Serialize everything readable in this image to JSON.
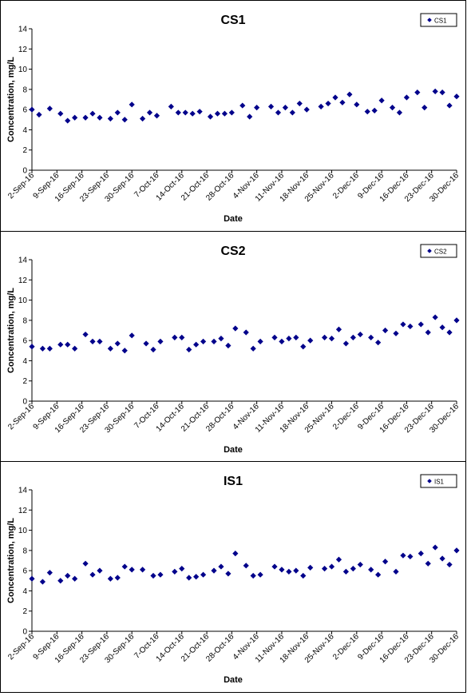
{
  "chart_data": [
    {
      "type": "scatter",
      "title": "CS1",
      "xlabel": "Date",
      "ylabel": "Concentration, mg/L",
      "legend": {
        "label": "CS1",
        "placement": "top-right"
      },
      "marker": "diamond",
      "color": "#00008B",
      "ylim": [
        0,
        14
      ],
      "yticks": [
        0,
        2,
        4,
        6,
        8,
        10,
        12,
        14
      ],
      "xlim": [
        "2016-09-02",
        "2016-12-30"
      ],
      "xtick_labels": [
        "2-Sep-16",
        "9-Sep-16",
        "16-Sep-16",
        "23-Sep-16",
        "30-Sep-16",
        "7-Oct-16",
        "14-Oct-16",
        "21-Oct-16",
        "28-Oct-16",
        "4-Nov-16",
        "11-Nov-16",
        "18-Nov-16",
        "25-Nov-16",
        "2-Dec-16",
        "9-Dec-16",
        "16-Dec-16",
        "23-Dec-16",
        "30-Dec-16"
      ],
      "grid": false,
      "x": [
        "2016-09-02",
        "2016-09-04",
        "2016-09-07",
        "2016-09-10",
        "2016-09-12",
        "2016-09-14",
        "2016-09-17",
        "2016-09-19",
        "2016-09-21",
        "2016-09-24",
        "2016-09-26",
        "2016-09-28",
        "2016-09-30",
        "2016-10-03",
        "2016-10-05",
        "2016-10-07",
        "2016-10-11",
        "2016-10-13",
        "2016-10-15",
        "2016-10-17",
        "2016-10-19",
        "2016-10-22",
        "2016-10-24",
        "2016-10-26",
        "2016-10-28",
        "2016-10-31",
        "2016-11-02",
        "2016-11-04",
        "2016-11-08",
        "2016-11-10",
        "2016-11-12",
        "2016-11-14",
        "2016-11-16",
        "2016-11-18",
        "2016-11-22",
        "2016-11-24",
        "2016-11-26",
        "2016-11-28",
        "2016-11-30",
        "2016-12-02",
        "2016-12-05",
        "2016-12-07",
        "2016-12-09",
        "2016-12-12",
        "2016-12-14",
        "2016-12-16",
        "2016-12-19",
        "2016-12-21",
        "2016-12-24",
        "2016-12-26",
        "2016-12-28",
        "2016-12-30"
      ],
      "values": [
        6.0,
        5.5,
        6.1,
        5.6,
        4.9,
        5.2,
        5.2,
        5.6,
        5.2,
        5.1,
        5.7,
        5.0,
        6.5,
        5.1,
        5.7,
        5.4,
        6.3,
        5.7,
        5.7,
        5.6,
        5.8,
        5.3,
        5.6,
        5.6,
        5.7,
        6.4,
        5.3,
        6.2,
        6.3,
        5.7,
        6.2,
        5.7,
        6.6,
        6.0,
        6.3,
        6.6,
        7.2,
        6.7,
        7.5,
        6.5,
        5.8,
        5.9,
        6.9,
        6.2,
        5.7,
        7.2,
        7.7,
        6.2,
        7.8,
        7.7,
        6.4,
        7.3
      ]
    },
    {
      "type": "scatter",
      "title": "CS2",
      "xlabel": "Date",
      "ylabel": "Concentration, mg/L",
      "legend": {
        "label": "CS2",
        "placement": "top-right"
      },
      "marker": "diamond",
      "color": "#00008B",
      "ylim": [
        0,
        14
      ],
      "yticks": [
        0,
        2,
        4,
        6,
        8,
        10,
        12,
        14
      ],
      "xlim": [
        "2016-09-02",
        "2016-12-30"
      ],
      "xtick_labels": [
        "2-Sep-16",
        "9-Sep-16",
        "16-Sep-16",
        "23-Sep-16",
        "30-Sep-16",
        "7-Oct-16",
        "14-Oct-16",
        "21-Oct-16",
        "28-Oct-16",
        "4-Nov-16",
        "11-Nov-16",
        "18-Nov-16",
        "25-Nov-16",
        "2-Dec-16",
        "9-Dec-16",
        "16-Dec-16",
        "23-Dec-16",
        "30-Dec-16"
      ],
      "grid": false,
      "x": [
        "2016-09-02",
        "2016-09-05",
        "2016-09-07",
        "2016-09-10",
        "2016-09-12",
        "2016-09-14",
        "2016-09-17",
        "2016-09-19",
        "2016-09-21",
        "2016-09-24",
        "2016-09-26",
        "2016-09-28",
        "2016-09-30",
        "2016-10-04",
        "2016-10-06",
        "2016-10-08",
        "2016-10-12",
        "2016-10-14",
        "2016-10-16",
        "2016-10-18",
        "2016-10-20",
        "2016-10-23",
        "2016-10-25",
        "2016-10-27",
        "2016-10-29",
        "2016-11-01",
        "2016-11-03",
        "2016-11-05",
        "2016-11-09",
        "2016-11-11",
        "2016-11-13",
        "2016-11-15",
        "2016-11-17",
        "2016-11-19",
        "2016-11-23",
        "2016-11-25",
        "2016-11-27",
        "2016-11-29",
        "2016-12-01",
        "2016-12-03",
        "2016-12-06",
        "2016-12-08",
        "2016-12-10",
        "2016-12-13",
        "2016-12-15",
        "2016-12-17",
        "2016-12-20",
        "2016-12-22",
        "2016-12-24",
        "2016-12-26",
        "2016-12-28",
        "2016-12-30"
      ],
      "values": [
        5.4,
        5.2,
        5.2,
        5.6,
        5.6,
        5.2,
        6.6,
        5.9,
        5.9,
        5.2,
        5.7,
        5.0,
        6.5,
        5.7,
        5.1,
        5.9,
        6.3,
        6.3,
        5.1,
        5.6,
        5.9,
        5.9,
        6.2,
        5.5,
        7.2,
        6.8,
        5.2,
        5.9,
        6.3,
        5.9,
        6.2,
        6.3,
        5.4,
        6.0,
        6.3,
        6.2,
        7.1,
        5.7,
        6.3,
        6.6,
        6.3,
        5.8,
        7.0,
        6.7,
        7.6,
        7.4,
        7.6,
        6.8,
        8.3,
        7.3,
        6.8,
        8.0
      ]
    },
    {
      "type": "scatter",
      "title": "IS1",
      "xlabel": "Date",
      "ylabel": "Concentration, mg/L",
      "legend": {
        "label": "IS1",
        "placement": "top-right"
      },
      "marker": "diamond",
      "color": "#00008B",
      "ylim": [
        0,
        14
      ],
      "yticks": [
        0,
        2,
        4,
        6,
        8,
        10,
        12,
        14
      ],
      "xlim": [
        "2016-09-02",
        "2016-12-30"
      ],
      "xtick_labels": [
        "2-Sep-16",
        "9-Sep-16",
        "16-Sep-16",
        "23-Sep-16",
        "30-Sep-16",
        "7-Oct-16",
        "14-Oct-16",
        "21-Oct-16",
        "28-Oct-16",
        "4-Nov-16",
        "11-Nov-16",
        "18-Nov-16",
        "25-Nov-16",
        "2-Dec-16",
        "9-Dec-16",
        "16-Dec-16",
        "23-Dec-16",
        "30-Dec-16"
      ],
      "grid": false,
      "x": [
        "2016-09-02",
        "2016-09-05",
        "2016-09-07",
        "2016-09-10",
        "2016-09-12",
        "2016-09-14",
        "2016-09-17",
        "2016-09-19",
        "2016-09-21",
        "2016-09-24",
        "2016-09-26",
        "2016-09-28",
        "2016-09-30",
        "2016-10-03",
        "2016-10-06",
        "2016-10-08",
        "2016-10-12",
        "2016-10-14",
        "2016-10-16",
        "2016-10-18",
        "2016-10-20",
        "2016-10-23",
        "2016-10-25",
        "2016-10-27",
        "2016-10-29",
        "2016-11-01",
        "2016-11-03",
        "2016-11-05",
        "2016-11-09",
        "2016-11-11",
        "2016-11-13",
        "2016-11-15",
        "2016-11-17",
        "2016-11-19",
        "2016-11-23",
        "2016-11-25",
        "2016-11-27",
        "2016-11-29",
        "2016-12-01",
        "2016-12-03",
        "2016-12-06",
        "2016-12-08",
        "2016-12-10",
        "2016-12-13",
        "2016-12-15",
        "2016-12-17",
        "2016-12-20",
        "2016-12-22",
        "2016-12-24",
        "2016-12-26",
        "2016-12-28",
        "2016-12-30"
      ],
      "values": [
        5.2,
        4.9,
        5.8,
        5.0,
        5.5,
        5.2,
        6.7,
        5.6,
        6.0,
        5.2,
        5.3,
        6.4,
        6.1,
        6.1,
        5.5,
        5.6,
        5.9,
        6.2,
        5.3,
        5.4,
        5.6,
        6.0,
        6.4,
        5.7,
        7.7,
        6.5,
        5.5,
        5.6,
        6.4,
        6.1,
        5.9,
        6.0,
        5.5,
        6.3,
        6.2,
        6.4,
        7.1,
        5.9,
        6.2,
        6.6,
        6.1,
        5.6,
        6.9,
        5.9,
        7.5,
        7.4,
        7.7,
        6.7,
        8.3,
        7.2,
        6.6,
        8.0
      ]
    }
  ]
}
